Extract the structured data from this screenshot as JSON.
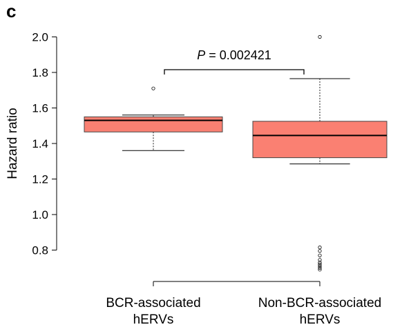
{
  "panel_label": "c",
  "chart_data": {
    "type": "box",
    "title": "",
    "xlabel": "",
    "ylabel": "Hazard ratio",
    "ylim": [
      0.68,
      2.02
    ],
    "yticks": [
      0.8,
      1.0,
      1.2,
      1.4,
      1.6,
      1.8,
      2.0
    ],
    "ytick_labels": [
      "0.8",
      "1.0",
      "1.2",
      "1.4",
      "1.6",
      "1.8",
      "2.0"
    ],
    "box_color": "#fa8072",
    "groups": [
      {
        "label_lines": [
          "BCR-associated",
          "hERVs"
        ],
        "whisker_low": 1.36,
        "q1": 1.465,
        "median": 1.53,
        "q3": 1.55,
        "whisker_high": 1.56,
        "outliers": [
          1.71
        ]
      },
      {
        "label_lines": [
          "Non-BCR-associated",
          "hERVs"
        ],
        "whisker_low": 1.285,
        "q1": 1.32,
        "median": 1.445,
        "q3": 1.525,
        "whisker_high": 1.765,
        "outliers": [
          2.0,
          0.815,
          0.795,
          0.77,
          0.745,
          0.73,
          0.72,
          0.71,
          0.7,
          0.69
        ]
      }
    ],
    "annotation": {
      "text_italic": "P",
      "text_rest": " = 0.002421"
    }
  }
}
